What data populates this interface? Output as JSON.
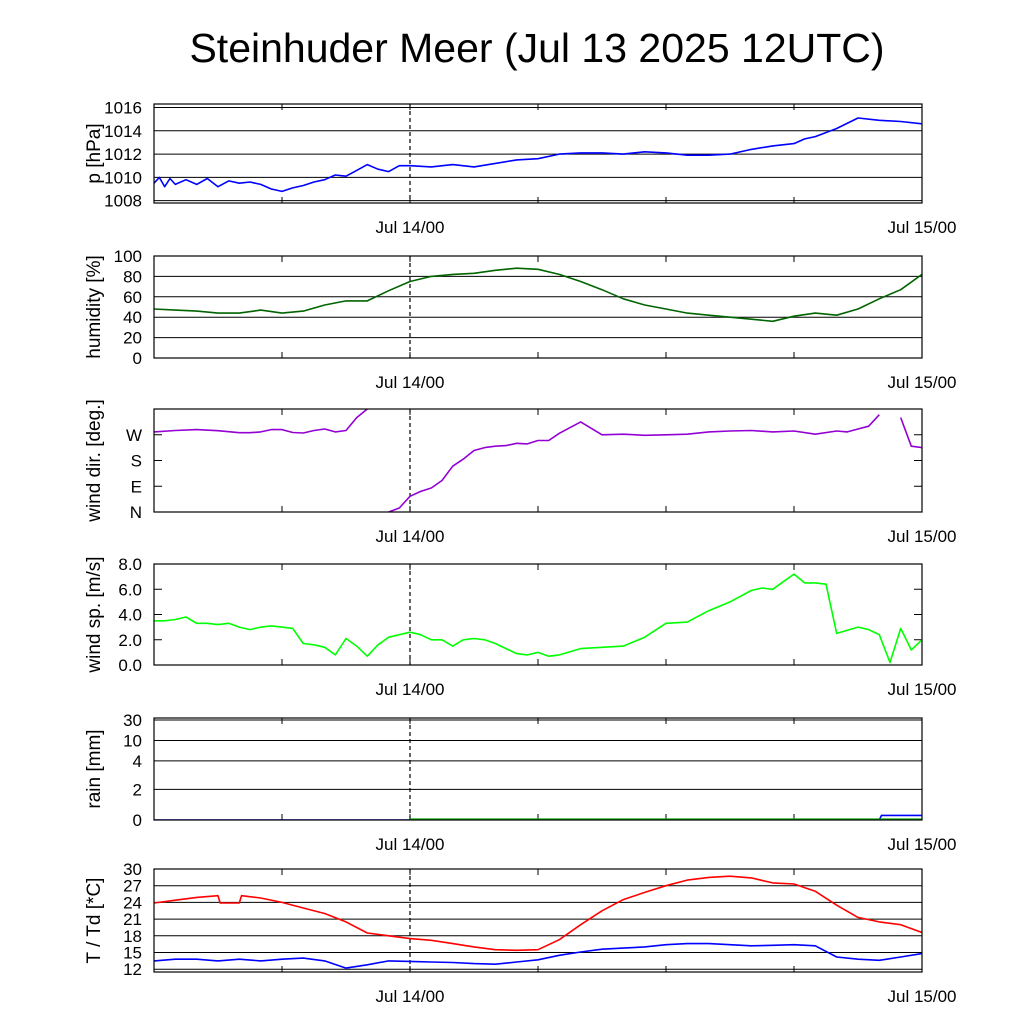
{
  "title": "Steinhuder Meer (Jul 13 2025 12UTC)",
  "colors": {
    "pressure": "#0000ff",
    "humidity": "#006400",
    "wind_dir": "#9400d3",
    "wind_speed": "#00ff00",
    "rain": "#0000ff",
    "rain_secondary": "#00aa00",
    "temperature": "#ff0000",
    "dewpoint": "#0000ff",
    "grid": "#000000"
  },
  "chart_data": [
    {
      "id": "pressure",
      "type": "line",
      "ylabel": "p [hPa]",
      "x_tick_labels": [
        "Jul 14/00",
        "Jul 15/00"
      ],
      "ylim": [
        1007.8,
        1016.3
      ],
      "yticks": [
        1008,
        1010,
        1012,
        1014,
        1016
      ],
      "ytick_labels": [
        "1008",
        "1010",
        "1012",
        "1014",
        "1016"
      ],
      "series": [
        {
          "color_key": "pressure",
          "x": [
            0,
            0.25,
            0.5,
            0.75,
            1,
            1.5,
            2,
            2.5,
            3,
            3.5,
            4,
            4.5,
            5,
            5.5,
            6,
            6.5,
            7,
            7.5,
            8,
            8.5,
            9,
            9.5,
            10,
            10.5,
            11,
            11.5,
            12,
            13,
            14,
            15,
            16,
            17,
            18,
            19,
            20,
            21,
            22,
            23,
            24,
            25,
            26,
            27,
            28,
            29,
            30,
            30.5,
            31,
            32,
            33,
            34,
            35,
            36
          ],
          "y": [
            1009.5,
            1010.0,
            1009.2,
            1009.9,
            1009.4,
            1009.8,
            1009.4,
            1009.9,
            1009.2,
            1009.7,
            1009.5,
            1009.6,
            1009.4,
            1009.0,
            1008.8,
            1009.1,
            1009.3,
            1009.6,
            1009.8,
            1010.2,
            1010.1,
            1010.6,
            1011.1,
            1010.7,
            1010.5,
            1011.0,
            1011.0,
            1010.9,
            1011.1,
            1010.9,
            1011.2,
            1011.5,
            1011.6,
            1012.0,
            1012.1,
            1012.1,
            1012.0,
            1012.2,
            1012.1,
            1011.9,
            1011.9,
            1012.0,
            1012.4,
            1012.7,
            1012.9,
            1013.3,
            1013.5,
            1014.2,
            1015.1,
            1014.9,
            1014.8,
            1014.6
          ]
        }
      ]
    },
    {
      "id": "humidity",
      "type": "line",
      "ylabel": "humidity [%]",
      "x_tick_labels": [
        "Jul 14/00",
        "Jul 15/00"
      ],
      "ylim": [
        0,
        100
      ],
      "yticks": [
        0,
        20,
        40,
        60,
        80,
        100
      ],
      "ytick_labels": [
        "0",
        "20",
        "40",
        "60",
        "80",
        "100"
      ],
      "series": [
        {
          "color_key": "humidity",
          "x": [
            0,
            1,
            2,
            3,
            4,
            5,
            6,
            7,
            8,
            9,
            10,
            11,
            12,
            13,
            14,
            15,
            16,
            17,
            18,
            19,
            20,
            21,
            22,
            23,
            24,
            25,
            26,
            27,
            28,
            29,
            30,
            31,
            32,
            33,
            34,
            35,
            36
          ],
          "y": [
            48,
            47,
            46,
            44,
            44,
            47,
            44,
            46,
            52,
            56,
            56,
            66,
            75,
            80,
            82,
            83,
            86,
            88,
            87,
            82,
            75,
            67,
            58,
            52,
            48,
            44,
            42,
            40,
            38,
            36,
            41,
            44,
            42,
            48,
            58,
            67,
            82
          ]
        }
      ]
    },
    {
      "id": "wind_direction",
      "type": "line",
      "ylabel": "wind dir. [deg.]",
      "x_tick_labels": [
        "Jul 14/00",
        "Jul 15/00"
      ],
      "ylim": [
        0,
        360
      ],
      "yticks": [
        0,
        90,
        180,
        270
      ],
      "ytick_labels": [
        "N",
        "E",
        "S",
        "W"
      ],
      "series": [
        {
          "color_key": "wind_dir",
          "x": [
            0,
            1,
            2,
            3,
            4,
            4.5,
            5,
            5.5,
            6,
            6.5,
            7,
            7.5,
            8,
            8.5,
            9,
            9.5,
            10,
            10.5,
            11,
            11.5,
            12,
            12.5,
            13,
            13.5,
            14,
            14.5,
            15,
            15.5,
            16,
            16.5,
            17,
            17.5,
            18,
            18.5,
            19,
            20,
            21,
            22,
            23,
            24,
            25,
            26,
            27,
            28,
            29,
            30,
            31,
            32,
            32.5,
            33,
            33.5,
            34,
            34.5,
            35,
            35.5,
            36
          ],
          "y": [
            280,
            285,
            288,
            284,
            277,
            277,
            280,
            288,
            288,
            278,
            276,
            285,
            290,
            280,
            285,
            330,
            360,
            null,
            0,
            14,
            55,
            72,
            84,
            110,
            160,
            185,
            215,
            225,
            230,
            232,
            240,
            238,
            250,
            250,
            275,
            315,
            270,
            272,
            268,
            270,
            272,
            280,
            283,
            285,
            280,
            283,
            272,
            283,
            280,
            290,
            300,
            340,
            null,
            330,
            230,
            225
          ]
        }
      ]
    },
    {
      "id": "wind_speed",
      "type": "line",
      "ylabel": "wind sp. [m/s]",
      "x_tick_labels": [
        "Jul 14/00",
        "Jul 15/00"
      ],
      "ylim": [
        0,
        8
      ],
      "yticks": [
        0,
        2,
        4,
        6,
        8
      ],
      "ytick_labels": [
        "0.0",
        "2.0",
        "4.0",
        "6.0",
        "8.0"
      ],
      "series": [
        {
          "color_key": "wind_speed",
          "x": [
            0,
            0.5,
            1,
            1.5,
            2,
            2.5,
            3,
            3.5,
            4,
            4.5,
            5,
            5.5,
            6,
            6.5,
            7,
            7.5,
            8,
            8.5,
            9,
            9.5,
            10,
            10.5,
            11,
            11.5,
            12,
            12.5,
            13,
            13.5,
            14,
            14.5,
            15,
            15.5,
            16,
            16.5,
            17,
            17.5,
            18,
            18.5,
            19,
            20,
            21,
            22,
            23,
            24,
            25,
            26,
            27,
            28,
            28.5,
            29,
            29.5,
            30,
            30.5,
            31,
            31.5,
            32,
            33,
            33.5,
            34,
            34.5,
            35,
            35.5,
            36
          ],
          "y": [
            3.5,
            3.5,
            3.6,
            3.8,
            3.3,
            3.3,
            3.2,
            3.3,
            3.0,
            2.8,
            3.0,
            3.1,
            3.0,
            2.9,
            1.7,
            1.6,
            1.4,
            0.8,
            2.1,
            1.5,
            0.7,
            1.6,
            2.2,
            2.4,
            2.6,
            2.4,
            2.0,
            2.0,
            1.5,
            2.0,
            2.1,
            2.0,
            1.7,
            1.3,
            0.9,
            0.8,
            1.0,
            0.7,
            0.8,
            1.3,
            1.4,
            1.5,
            2.2,
            3.3,
            3.4,
            4.3,
            5.0,
            5.9,
            6.1,
            6.0,
            6.6,
            7.2,
            6.5,
            6.5,
            6.4,
            2.5,
            3.0,
            2.8,
            2.4,
            0.2,
            2.9,
            1.2,
            2.0
          ]
        }
      ]
    },
    {
      "id": "rain",
      "type": "line",
      "ylabel": "rain [mm]",
      "x_tick_labels": [
        "Jul 14/00",
        "Jul 15/00"
      ],
      "scale": "nonlinear",
      "yticks": [
        0,
        2,
        4,
        10,
        30
      ],
      "ytick_labels": [
        "0",
        "2",
        "4",
        "10",
        "30"
      ],
      "series": [
        {
          "color_key": "rain",
          "x": [
            0,
            34,
            34.1,
            36
          ],
          "y": [
            0,
            0,
            0.3,
            0.3
          ]
        },
        {
          "color_key": "rain_secondary",
          "x": [
            12,
            36
          ],
          "y": [
            0.05,
            0.05
          ]
        }
      ]
    },
    {
      "id": "temperature",
      "type": "line",
      "ylabel": "T / Td [*C]",
      "x_tick_labels": [
        "Jul 14/00",
        "Jul 15/00"
      ],
      "ylim": [
        11.5,
        30
      ],
      "yticks": [
        12,
        15,
        18,
        21,
        24,
        27,
        30
      ],
      "ytick_labels": [
        "12",
        "15",
        "18",
        "21",
        "24",
        "27",
        "30"
      ],
      "series": [
        {
          "color_key": "temperature",
          "x": [
            0,
            1,
            2,
            3,
            3.1,
            4,
            4.1,
            5,
            6,
            7,
            8,
            9,
            10,
            11,
            12,
            13,
            14,
            15,
            16,
            17,
            18,
            19,
            20,
            21,
            22,
            23,
            24,
            25,
            26,
            27,
            28,
            29,
            30,
            31,
            32,
            33,
            34,
            35,
            36
          ],
          "y": [
            23.9,
            24.4,
            24.9,
            25.2,
            23.9,
            23.9,
            25.2,
            24.8,
            24.0,
            23.0,
            22.0,
            20.5,
            18.5,
            18.0,
            17.5,
            17.2,
            16.6,
            16.0,
            15.5,
            15.4,
            15.5,
            17.3,
            20.0,
            22.5,
            24.5,
            25.8,
            27.0,
            28.0,
            28.5,
            28.7,
            28.4,
            27.5,
            27.3,
            26.0,
            23.5,
            21.3,
            20.5,
            20.0,
            18.6
          ]
        },
        {
          "color_key": "dewpoint",
          "x": [
            0,
            1,
            2,
            3,
            4,
            5,
            6,
            7,
            8,
            9,
            10,
            11,
            12,
            13,
            14,
            15,
            16,
            17,
            18,
            19,
            20,
            21,
            22,
            23,
            24,
            25,
            26,
            27,
            28,
            29,
            30,
            31,
            32,
            33,
            34,
            35,
            36
          ],
          "y": [
            13.5,
            13.8,
            13.8,
            13.5,
            13.8,
            13.5,
            13.8,
            14.0,
            13.5,
            12.2,
            12.8,
            13.5,
            13.4,
            13.3,
            13.2,
            13.0,
            12.9,
            13.3,
            13.7,
            14.5,
            15.1,
            15.6,
            15.8,
            16.0,
            16.4,
            16.6,
            16.6,
            16.4,
            16.2,
            16.3,
            16.4,
            16.2,
            14.2,
            13.8,
            13.6,
            14.2,
            14.8
          ]
        }
      ]
    }
  ]
}
